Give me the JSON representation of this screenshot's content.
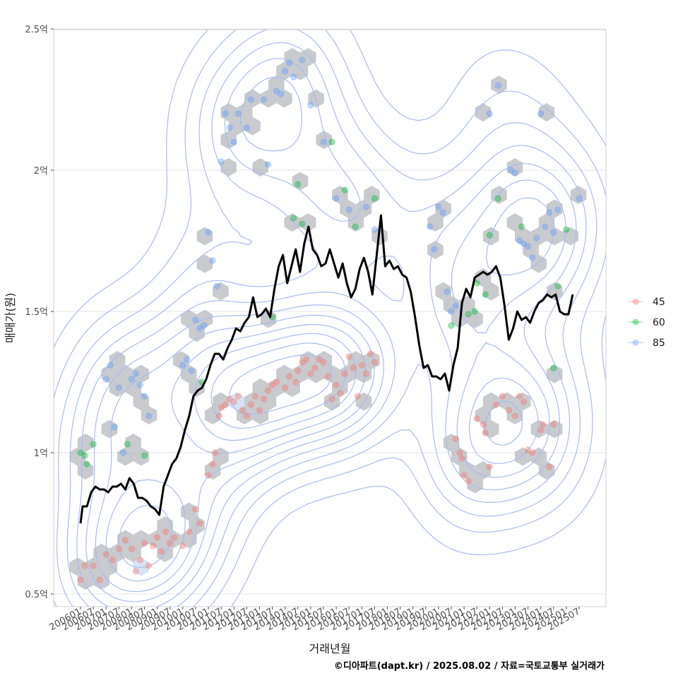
{
  "chart_data": {
    "type": "scatter",
    "xlabel": "거래년월",
    "ylabel": "매매가(원)",
    "caption": "©디아파트(dapt.kr) / 2025.08.02 / 자료=국토교통부 실거래가",
    "x_tick_labels": [
      "200601",
      "200607",
      "200701",
      "200707",
      "200801",
      "200807",
      "200901",
      "200907",
      "201001",
      "201007",
      "201101",
      "201107",
      "201201",
      "201207",
      "201301",
      "201307",
      "201401",
      "201407",
      "201501",
      "201507",
      "201601",
      "201607",
      "201701",
      "201707",
      "201801",
      "201807",
      "201901",
      "201907",
      "202001",
      "202007",
      "202101",
      "202107",
      "202201",
      "202207",
      "202301",
      "202307",
      "202401",
      "202407",
      "202501",
      "202507"
    ],
    "y_ticks": [
      0.5,
      1,
      1.5,
      2,
      2.5
    ],
    "y_tick_labels": [
      "0.5억",
      "1억",
      "1.5억",
      "2억",
      "2.5억"
    ],
    "ylim": [
      0.5,
      2.5
    ],
    "x_range_months": [
      "200601",
      "202507"
    ],
    "grid": true,
    "legend_position": "right",
    "colors": {
      "45": "#f8766d",
      "60": "#00ba38",
      "85": "#619cff",
      "trend": "#000000",
      "hex": "#9aa0a6",
      "contour": "#a9bcf0"
    },
    "series": [
      {
        "name": "45",
        "points": [
          [
            "200601",
            0.55
          ],
          [
            "200603",
            0.6
          ],
          [
            "200607",
            0.6
          ],
          [
            "200610",
            0.55
          ],
          [
            "200701",
            0.64
          ],
          [
            "200704",
            0.62
          ],
          [
            "200707",
            0.66
          ],
          [
            "200710",
            0.69
          ],
          [
            "200801",
            0.66
          ],
          [
            "200803",
            0.58
          ],
          [
            "200805",
            0.62
          ],
          [
            "200807",
            0.68
          ],
          [
            "200809",
            0.6
          ],
          [
            "200811",
            0.67
          ],
          [
            "200901",
            0.7
          ],
          [
            "200903",
            0.65
          ],
          [
            "200905",
            0.72
          ],
          [
            "200907",
            0.68
          ],
          [
            "200909",
            0.7
          ],
          [
            "201001",
            0.67
          ],
          [
            "201004",
            0.72
          ],
          [
            "201007",
            0.8
          ],
          [
            "201009",
            0.75
          ],
          [
            "201101",
            0.92
          ],
          [
            "201103",
            0.96
          ],
          [
            "201104",
            1.0
          ],
          [
            "201106",
            1.13
          ],
          [
            "201107",
            1.16
          ],
          [
            "201109",
            1.17
          ],
          [
            "201111",
            1.19
          ],
          [
            "201201",
            1.18
          ],
          [
            "201203",
            1.2
          ],
          [
            "201205",
            1.15
          ],
          [
            "201207",
            1.13
          ],
          [
            "201209",
            1.17
          ],
          [
            "201211",
            1.2
          ],
          [
            "201301",
            1.15
          ],
          [
            "201303",
            1.19
          ],
          [
            "201305",
            1.22
          ],
          [
            "201307",
            1.24
          ],
          [
            "201309",
            1.25
          ],
          [
            "201401",
            1.23
          ],
          [
            "201403",
            1.27
          ],
          [
            "201406",
            1.25
          ],
          [
            "201407",
            1.29
          ],
          [
            "201409",
            1.32
          ],
          [
            "201411",
            1.33
          ],
          [
            "201501",
            1.28
          ],
          [
            "201503",
            1.3
          ],
          [
            "201505",
            1.33
          ],
          [
            "201507",
            1.32
          ],
          [
            "201509",
            1.27
          ],
          [
            "201511",
            1.19
          ],
          [
            "201601",
            1.24
          ],
          [
            "201603",
            1.21
          ],
          [
            "201605",
            1.28
          ],
          [
            "201607",
            1.34
          ],
          [
            "201609",
            1.3
          ],
          [
            "201611",
            1.2
          ],
          [
            "201701",
            1.31
          ],
          [
            "201703",
            1.28
          ],
          [
            "201705",
            1.35
          ],
          [
            "201707",
            1.32
          ],
          [
            "202009",
            1.05
          ],
          [
            "202011",
            1.0
          ],
          [
            "202012",
            0.98
          ],
          [
            "202101",
            0.92
          ],
          [
            "202103",
            0.9
          ],
          [
            "202107",
            1.12
          ],
          [
            "202110",
            1.1
          ],
          [
            "202111",
            1.07
          ],
          [
            "202201",
            0.95
          ],
          [
            "202204",
            1.17
          ],
          [
            "202207",
            1.2
          ],
          [
            "202210",
            1.15
          ],
          [
            "202301",
            1.13
          ],
          [
            "202303",
            1.2
          ],
          [
            "202305",
            1.18
          ],
          [
            "202307",
            1.01
          ],
          [
            "202309",
            1.0
          ],
          [
            "202401",
            1.08
          ],
          [
            "202402",
            1.1
          ],
          [
            "202405",
            0.95
          ],
          [
            "202407",
            1.1
          ]
        ]
      },
      {
        "name": "60",
        "points": [
          [
            "200601",
            1.0
          ],
          [
            "200603",
            0.99
          ],
          [
            "200604",
            0.96
          ],
          [
            "200607",
            1.03
          ],
          [
            "200711",
            1.03
          ],
          [
            "200807",
            0.99
          ],
          [
            "201010",
            1.25
          ],
          [
            "201307",
            1.48
          ],
          [
            "201405",
            1.83
          ],
          [
            "201407",
            1.95
          ],
          [
            "201409",
            1.81
          ],
          [
            "201511",
            2.1
          ],
          [
            "201605",
            1.93
          ],
          [
            "201610",
            1.8
          ],
          [
            "201707",
            1.9
          ],
          [
            "202007",
            1.45
          ],
          [
            "202103",
            1.49
          ],
          [
            "202106",
            1.5
          ],
          [
            "202107",
            1.6
          ],
          [
            "202111",
            1.56
          ],
          [
            "202201",
            1.77
          ],
          [
            "202205",
            1.9
          ],
          [
            "202304",
            1.8
          ],
          [
            "202407",
            1.3
          ],
          [
            "202409",
            1.59
          ],
          [
            "202501",
            1.79
          ]
        ]
      },
      {
        "name": "85",
        "points": [
          [
            "200701",
            1.26
          ],
          [
            "200703",
            1.31
          ],
          [
            "200705",
            1.09
          ],
          [
            "200707",
            1.23
          ],
          [
            "200709",
            1.0
          ],
          [
            "200801",
            1.26
          ],
          [
            "200803",
            1.28
          ],
          [
            "200805",
            1.24
          ],
          [
            "200807",
            1.2
          ],
          [
            "200809",
            1.13
          ],
          [
            "201001",
            1.31
          ],
          [
            "201003",
            1.33
          ],
          [
            "201005",
            1.29
          ],
          [
            "201007",
            1.47
          ],
          [
            "201009",
            1.44
          ],
          [
            "201011",
            1.45
          ],
          [
            "201101",
            1.78
          ],
          [
            "201103",
            1.68
          ],
          [
            "201105",
            1.59
          ],
          [
            "201107",
            2.03
          ],
          [
            "201109",
            2.2
          ],
          [
            "201111",
            2.15
          ],
          [
            "201201",
            2.1
          ],
          [
            "201203",
            2.2
          ],
          [
            "201207",
            2.15
          ],
          [
            "201209",
            2.25
          ],
          [
            "201303",
            2.25
          ],
          [
            "201305",
            2.02
          ],
          [
            "201309",
            2.28
          ],
          [
            "201311",
            2.27
          ],
          [
            "201401",
            2.35
          ],
          [
            "201403",
            2.38
          ],
          [
            "201405",
            2.33
          ],
          [
            "201409",
            2.39
          ],
          [
            "201501",
            2.23
          ],
          [
            "201507",
            2.1
          ],
          [
            "201601",
            1.9
          ],
          [
            "201607",
            1.86
          ],
          [
            "201703",
            1.87
          ],
          [
            "201707",
            1.79
          ],
          [
            "201909",
            1.8
          ],
          [
            "201911",
            1.72
          ],
          [
            "202001",
            1.87
          ],
          [
            "202003",
            1.85
          ],
          [
            "202005",
            1.57
          ],
          [
            "202007",
            1.5
          ],
          [
            "202009",
            1.52
          ],
          [
            "202201",
            2.2
          ],
          [
            "202205",
            2.3
          ],
          [
            "202211",
            2.0
          ],
          [
            "202301",
            1.99
          ],
          [
            "202303",
            1.75
          ],
          [
            "202305",
            1.74
          ],
          [
            "202307",
            1.73
          ],
          [
            "202309",
            1.69
          ],
          [
            "202311",
            1.76
          ],
          [
            "202401",
            2.2
          ],
          [
            "202403",
            1.8
          ],
          [
            "202405",
            1.85
          ],
          [
            "202407",
            1.78
          ],
          [
            "202409",
            1.86
          ],
          [
            "202507",
            1.9
          ]
        ]
      }
    ],
    "trend": {
      "name": "",
      "points": [
        [
          "200601",
          0.75
        ],
        [
          "200602",
          0.81
        ],
        [
          "200604",
          0.81
        ],
        [
          "200606",
          0.86
        ],
        [
          "200608",
          0.88
        ],
        [
          "200610",
          0.87
        ],
        [
          "200612",
          0.87
        ],
        [
          "200702",
          0.86
        ],
        [
          "200704",
          0.88
        ],
        [
          "200706",
          0.88
        ],
        [
          "200708",
          0.89
        ],
        [
          "200710",
          0.87
        ],
        [
          "200712",
          0.91
        ],
        [
          "200802",
          0.89
        ],
        [
          "200804",
          0.84
        ],
        [
          "200806",
          0.84
        ],
        [
          "200808",
          0.83
        ],
        [
          "200810",
          0.81
        ],
        [
          "200812",
          0.8
        ],
        [
          "200902",
          0.78
        ],
        [
          "200904",
          0.88
        ],
        [
          "200906",
          0.92
        ],
        [
          "200908",
          0.96
        ],
        [
          "200910",
          0.98
        ],
        [
          "200912",
          1.02
        ],
        [
          "201002",
          1.08
        ],
        [
          "201004",
          1.13
        ],
        [
          "201006",
          1.2
        ],
        [
          "201008",
          1.22
        ],
        [
          "201010",
          1.23
        ],
        [
          "201012",
          1.26
        ],
        [
          "201102",
          1.31
        ],
        [
          "201104",
          1.35
        ],
        [
          "201106",
          1.35
        ],
        [
          "201108",
          1.33
        ],
        [
          "201110",
          1.37
        ],
        [
          "201112",
          1.4
        ],
        [
          "201202",
          1.44
        ],
        [
          "201204",
          1.43
        ],
        [
          "201206",
          1.46
        ],
        [
          "201208",
          1.48
        ],
        [
          "201210",
          1.55
        ],
        [
          "201212",
          1.48
        ],
        [
          "201302",
          1.49
        ],
        [
          "201304",
          1.51
        ],
        [
          "201306",
          1.48
        ],
        [
          "201308",
          1.58
        ],
        [
          "201310",
          1.66
        ],
        [
          "201312",
          1.7
        ],
        [
          "201402",
          1.6
        ],
        [
          "201404",
          1.66
        ],
        [
          "201406",
          1.72
        ],
        [
          "201408",
          1.64
        ],
        [
          "201410",
          1.74
        ],
        [
          "201412",
          1.8
        ],
        [
          "201502",
          1.72
        ],
        [
          "201504",
          1.7
        ],
        [
          "201506",
          1.66
        ],
        [
          "201508",
          1.67
        ],
        [
          "201510",
          1.72
        ],
        [
          "201512",
          1.67
        ],
        [
          "201602",
          1.62
        ],
        [
          "201604",
          1.67
        ],
        [
          "201606",
          1.6
        ],
        [
          "201608",
          1.55
        ],
        [
          "201610",
          1.58
        ],
        [
          "201612",
          1.65
        ],
        [
          "201702",
          1.69
        ],
        [
          "201704",
          1.64
        ],
        [
          "201706",
          1.56
        ],
        [
          "201708",
          1.7
        ],
        [
          "201710",
          1.84
        ],
        [
          "201712",
          1.66
        ],
        [
          "201802",
          1.68
        ],
        [
          "201804",
          1.65
        ],
        [
          "201806",
          1.66
        ],
        [
          "201808",
          1.63
        ],
        [
          "201810",
          1.62
        ],
        [
          "201812",
          1.57
        ],
        [
          "201902",
          1.48
        ],
        [
          "201904",
          1.38
        ],
        [
          "201906",
          1.3
        ],
        [
          "201908",
          1.31
        ],
        [
          "201910",
          1.27
        ],
        [
          "201912",
          1.27
        ],
        [
          "202002",
          1.26
        ],
        [
          "202004",
          1.28
        ],
        [
          "202006",
          1.22
        ],
        [
          "202008",
          1.31
        ],
        [
          "202010",
          1.37
        ],
        [
          "202012",
          1.53
        ],
        [
          "202102",
          1.58
        ],
        [
          "202104",
          1.55
        ],
        [
          "202106",
          1.62
        ],
        [
          "202108",
          1.63
        ],
        [
          "202110",
          1.64
        ],
        [
          "202112",
          1.63
        ],
        [
          "202202",
          1.64
        ],
        [
          "202204",
          1.66
        ],
        [
          "202206",
          1.62
        ],
        [
          "202208",
          1.52
        ],
        [
          "202210",
          1.4
        ],
        [
          "202212",
          1.44
        ],
        [
          "202302",
          1.5
        ],
        [
          "202304",
          1.47
        ],
        [
          "202306",
          1.48
        ],
        [
          "202308",
          1.46
        ],
        [
          "202310",
          1.5
        ],
        [
          "202312",
          1.53
        ],
        [
          "202402",
          1.54
        ],
        [
          "202404",
          1.56
        ],
        [
          "202406",
          1.55
        ],
        [
          "202408",
          1.56
        ],
        [
          "202410",
          1.5
        ],
        [
          "202412",
          1.49
        ],
        [
          "202502",
          1.49
        ],
        [
          "202504",
          1.56
        ]
      ]
    }
  }
}
